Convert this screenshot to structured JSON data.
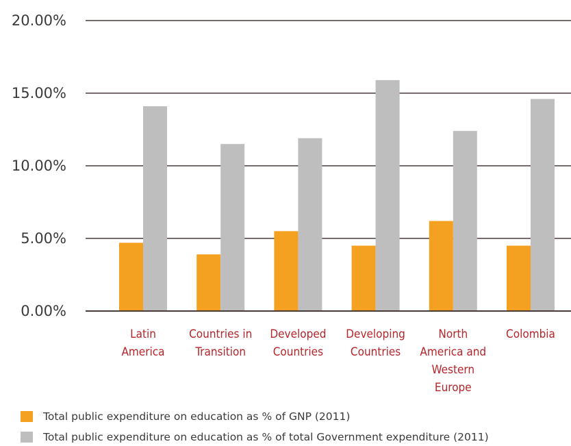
{
  "colors": {
    "gnp": "#f4a020",
    "govt": "#bebebe",
    "category_text": "#b5252a",
    "gridline": "#4a3a3a"
  },
  "chart_data": {
    "type": "bar",
    "categories": [
      [
        "Latin",
        "America"
      ],
      [
        "Countries in",
        "Transition"
      ],
      [
        "Developed",
        "Countries"
      ],
      [
        "Developing",
        "Countries"
      ],
      [
        "North",
        "America and",
        "Western",
        "Europe"
      ],
      [
        "Colombia"
      ]
    ],
    "series": [
      {
        "name": "Total public expenditure on education as % of GNP (2011)",
        "values": [
          4.7,
          3.9,
          5.5,
          4.5,
          6.2,
          4.5
        ]
      },
      {
        "name": "Total public expenditure on education as % of total Government expenditure (2011)",
        "values": [
          14.1,
          11.5,
          11.9,
          15.9,
          12.4,
          14.6
        ]
      }
    ],
    "ylim": [
      0,
      20
    ],
    "yticks": [
      0,
      5,
      10,
      15,
      20
    ],
    "ytick_labels": [
      "0.00%",
      "5.00%",
      "10.00%",
      "15.00%",
      "20.00%"
    ],
    "grid": true,
    "legend_placement": "bottom-left",
    "title": "",
    "xlabel": "",
    "ylabel": ""
  }
}
